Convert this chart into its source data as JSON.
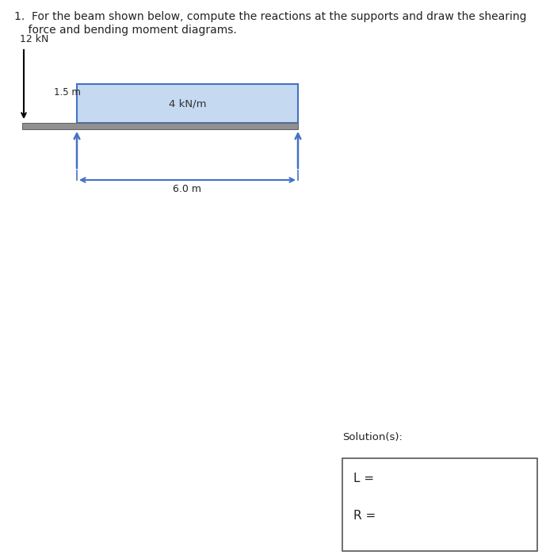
{
  "background_color": "#ffffff",
  "beam_color": "#909090",
  "beam_edge_color": "#666666",
  "load_rect_color": "#c5d9f1",
  "load_rect_edge": "#4472c4",
  "support_arrow_color": "#4472c4",
  "dim_line_color": "#4472c4",
  "force_arrow_color": "#000000",
  "dim_tick_color": "#333333",
  "text_color": "#222222",
  "label_12kN": "12 kN",
  "label_15m": "1.5 m",
  "label_4kNm": "4 kN/m",
  "label_60m": "6.0 m",
  "solution_label": "Solution(s):",
  "L_label": "L =",
  "R_label": "R =",
  "title_line1": "1.  For the beam shown below, compute the reactions at the supports and draw the shearing",
  "title_line2": "    force and bending moment diagrams."
}
